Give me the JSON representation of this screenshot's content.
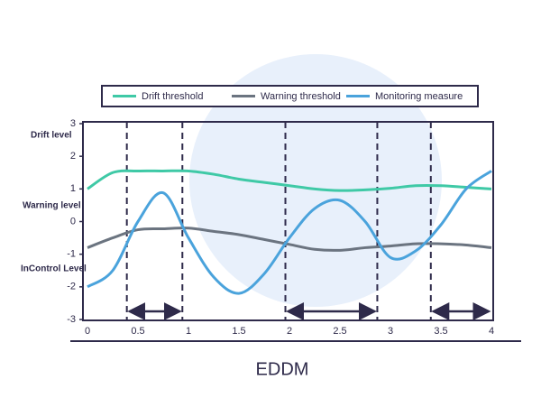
{
  "chart_data": {
    "type": "line",
    "title": "EDDM",
    "annotations": [
      "Drift level",
      "Warning level",
      "InControl Level"
    ],
    "x": [
      0,
      0.25,
      0.5,
      0.75,
      1,
      1.25,
      1.5,
      1.75,
      2,
      2.25,
      2.5,
      2.75,
      3,
      3.25,
      3.5,
      3.75,
      4
    ],
    "series": [
      {
        "name": "Drift threshold",
        "color": "#3fc9a6",
        "values": [
          1.0,
          1.5,
          1.55,
          1.55,
          1.55,
          1.45,
          1.3,
          1.2,
          1.1,
          1.0,
          0.95,
          0.97,
          1.02,
          1.1,
          1.1,
          1.05,
          1.0
        ]
      },
      {
        "name": "Warning threshold",
        "color": "#6b7480",
        "values": [
          -0.8,
          -0.5,
          -0.25,
          -0.22,
          -0.2,
          -0.3,
          -0.4,
          -0.55,
          -0.7,
          -0.85,
          -0.88,
          -0.8,
          -0.75,
          -0.68,
          -0.68,
          -0.72,
          -0.8
        ]
      },
      {
        "name": "Monitoring measure",
        "color": "#4aa3dc",
        "values": [
          -2.0,
          -1.5,
          0.0,
          0.88,
          -0.5,
          -1.7,
          -2.2,
          -1.6,
          -0.5,
          0.4,
          0.65,
          0.0,
          -1.1,
          -0.9,
          -0.1,
          1.0,
          1.55
        ]
      }
    ],
    "drift_lines": [
      0.39,
      0.94,
      1.96,
      2.87,
      3.4
    ],
    "xlim": [
      0,
      4
    ],
    "xticks": [
      0,
      0.5,
      1,
      1.5,
      2,
      2.5,
      3,
      3.5,
      4
    ],
    "ylim": [
      -3,
      3
    ],
    "yticks": [
      3,
      2,
      1,
      0,
      -1,
      -2,
      -3
    ]
  }
}
